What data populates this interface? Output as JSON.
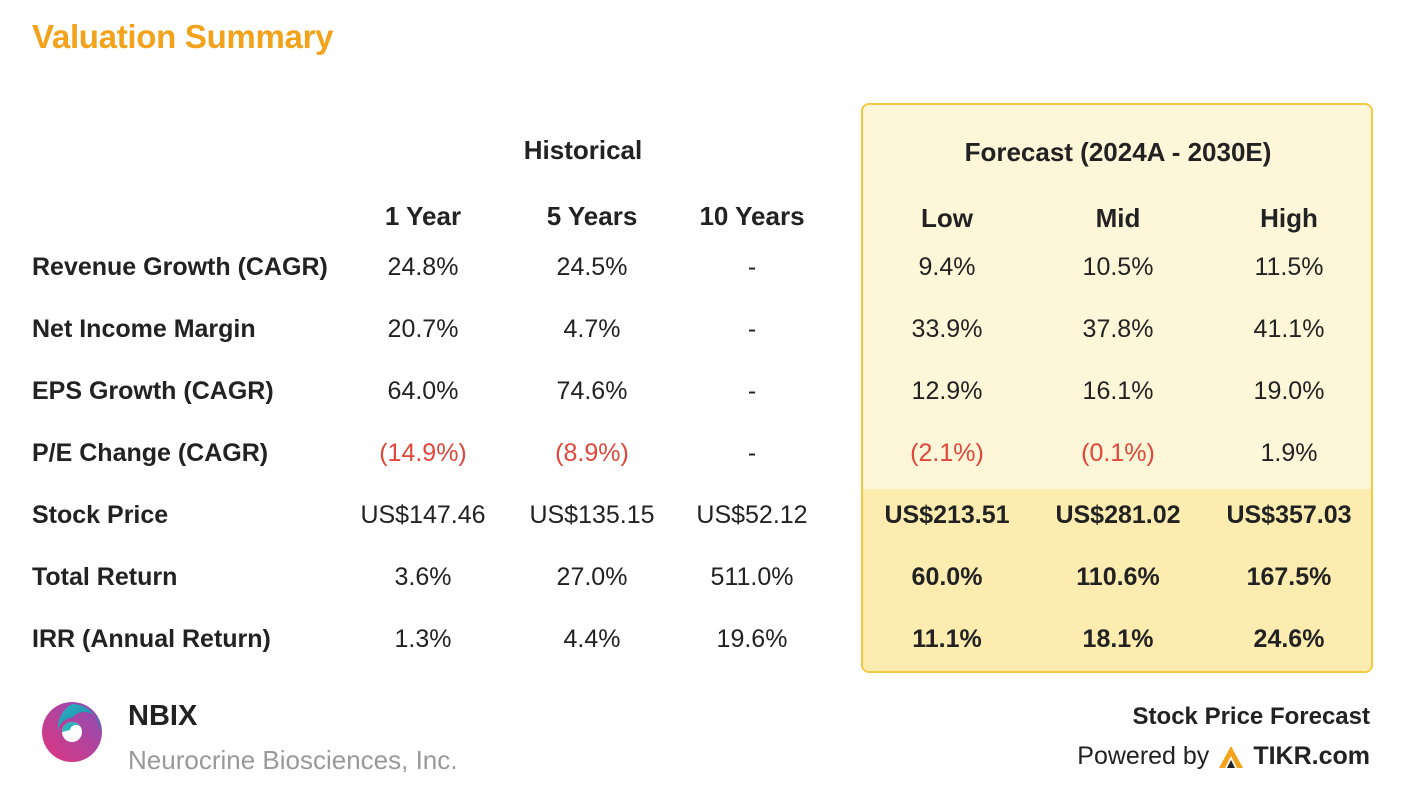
{
  "title": "Valuation Summary",
  "chart_data": {
    "type": "table",
    "title": "Valuation Summary",
    "group_headers": {
      "historical": "Historical",
      "forecast": "Forecast (2024A - 2030E)"
    },
    "columns": [
      "1 Year",
      "5 Years",
      "10 Years",
      "Low",
      "Mid",
      "High"
    ],
    "rows": [
      {
        "label": "Revenue Growth (CAGR)",
        "values": [
          "24.8%",
          "24.5%",
          "-",
          "9.4%",
          "10.5%",
          "11.5%"
        ]
      },
      {
        "label": "Net Income Margin",
        "values": [
          "20.7%",
          "4.7%",
          "-",
          "33.9%",
          "37.8%",
          "41.1%"
        ]
      },
      {
        "label": "EPS Growth (CAGR)",
        "values": [
          "64.0%",
          "74.6%",
          "-",
          "12.9%",
          "16.1%",
          "19.0%"
        ]
      },
      {
        "label": "P/E Change (CAGR)",
        "values": [
          "(14.9%)",
          "(8.9%)",
          "-",
          "(2.1%)",
          "(0.1%)",
          "1.9%"
        ]
      },
      {
        "label": "Stock Price",
        "values": [
          "US$147.46",
          "US$135.15",
          "US$52.12",
          "US$213.51",
          "US$281.02",
          "US$357.03"
        ]
      },
      {
        "label": "Total Return",
        "values": [
          "3.6%",
          "27.0%",
          "511.0%",
          "60.0%",
          "110.6%",
          "167.5%"
        ]
      },
      {
        "label": "IRR (Annual Return)",
        "values": [
          "1.3%",
          "4.4%",
          "19.6%",
          "11.1%",
          "18.1%",
          "24.6%"
        ]
      }
    ]
  },
  "colors": {
    "title": "#f2a21b",
    "negative": "#e0473a",
    "forecast_bg": "#fdf6d8",
    "forecast_highlight": "#fcecb0",
    "forecast_border": "#f5c842"
  },
  "footer": {
    "ticker": "NBIX",
    "company": "Neurocrine Biosciences, Inc.",
    "logo_icon": "neurocrine-swirl-logo",
    "label": "Stock Price Forecast",
    "powered_by": "Powered by",
    "brand": "TIKR.com",
    "brand_icon": "tikr-logo-icon"
  }
}
